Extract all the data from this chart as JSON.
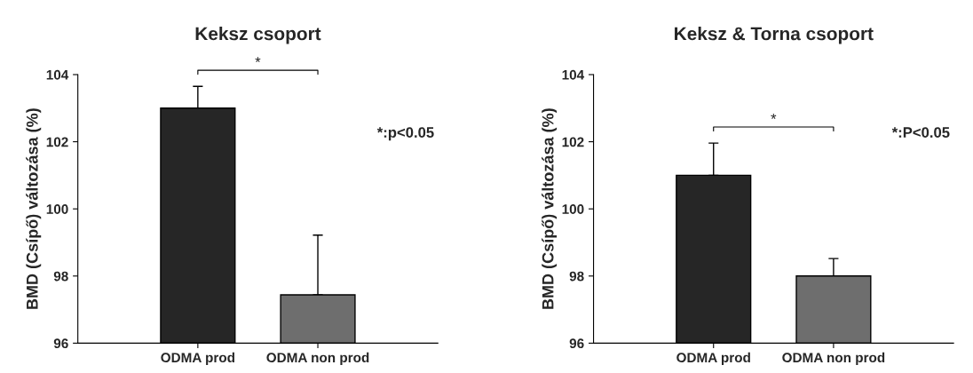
{
  "chart_data": [
    {
      "type": "bar",
      "title": "Keksz csoport",
      "ylabel": "BMD (Csípő) változása (%)",
      "categories": [
        "ODMA prod",
        "ODMA non prod"
      ],
      "values": [
        103.0,
        97.44
      ],
      "colors": [
        "#262626",
        "#6e6e6e"
      ],
      "errors": [
        [
          103.0,
          103.65
        ],
        [
          97.44,
          99.22
        ]
      ],
      "ylim": [
        96,
        104
      ],
      "yticks": [
        96,
        98,
        100,
        102,
        104
      ],
      "grid": false,
      "annotations": [
        "*",
        "*:p<0.05"
      ]
    },
    {
      "type": "bar",
      "title": "Keksz & Torna csoport",
      "ylabel": "BMD (Csípő) változása (%)",
      "categories": [
        "ODMA prod",
        "ODMA non prod"
      ],
      "values": [
        101.0,
        98.0
      ],
      "colors": [
        "#262626",
        "#6e6e6e"
      ],
      "errors": [
        [
          101.0,
          101.96
        ],
        [
          98.0,
          98.52
        ]
      ],
      "ylim": [
        96,
        104
      ],
      "yticks": [
        96,
        98,
        100,
        102,
        104
      ],
      "grid": false,
      "annotations": [
        "*",
        "*:P<0.05"
      ]
    }
  ]
}
